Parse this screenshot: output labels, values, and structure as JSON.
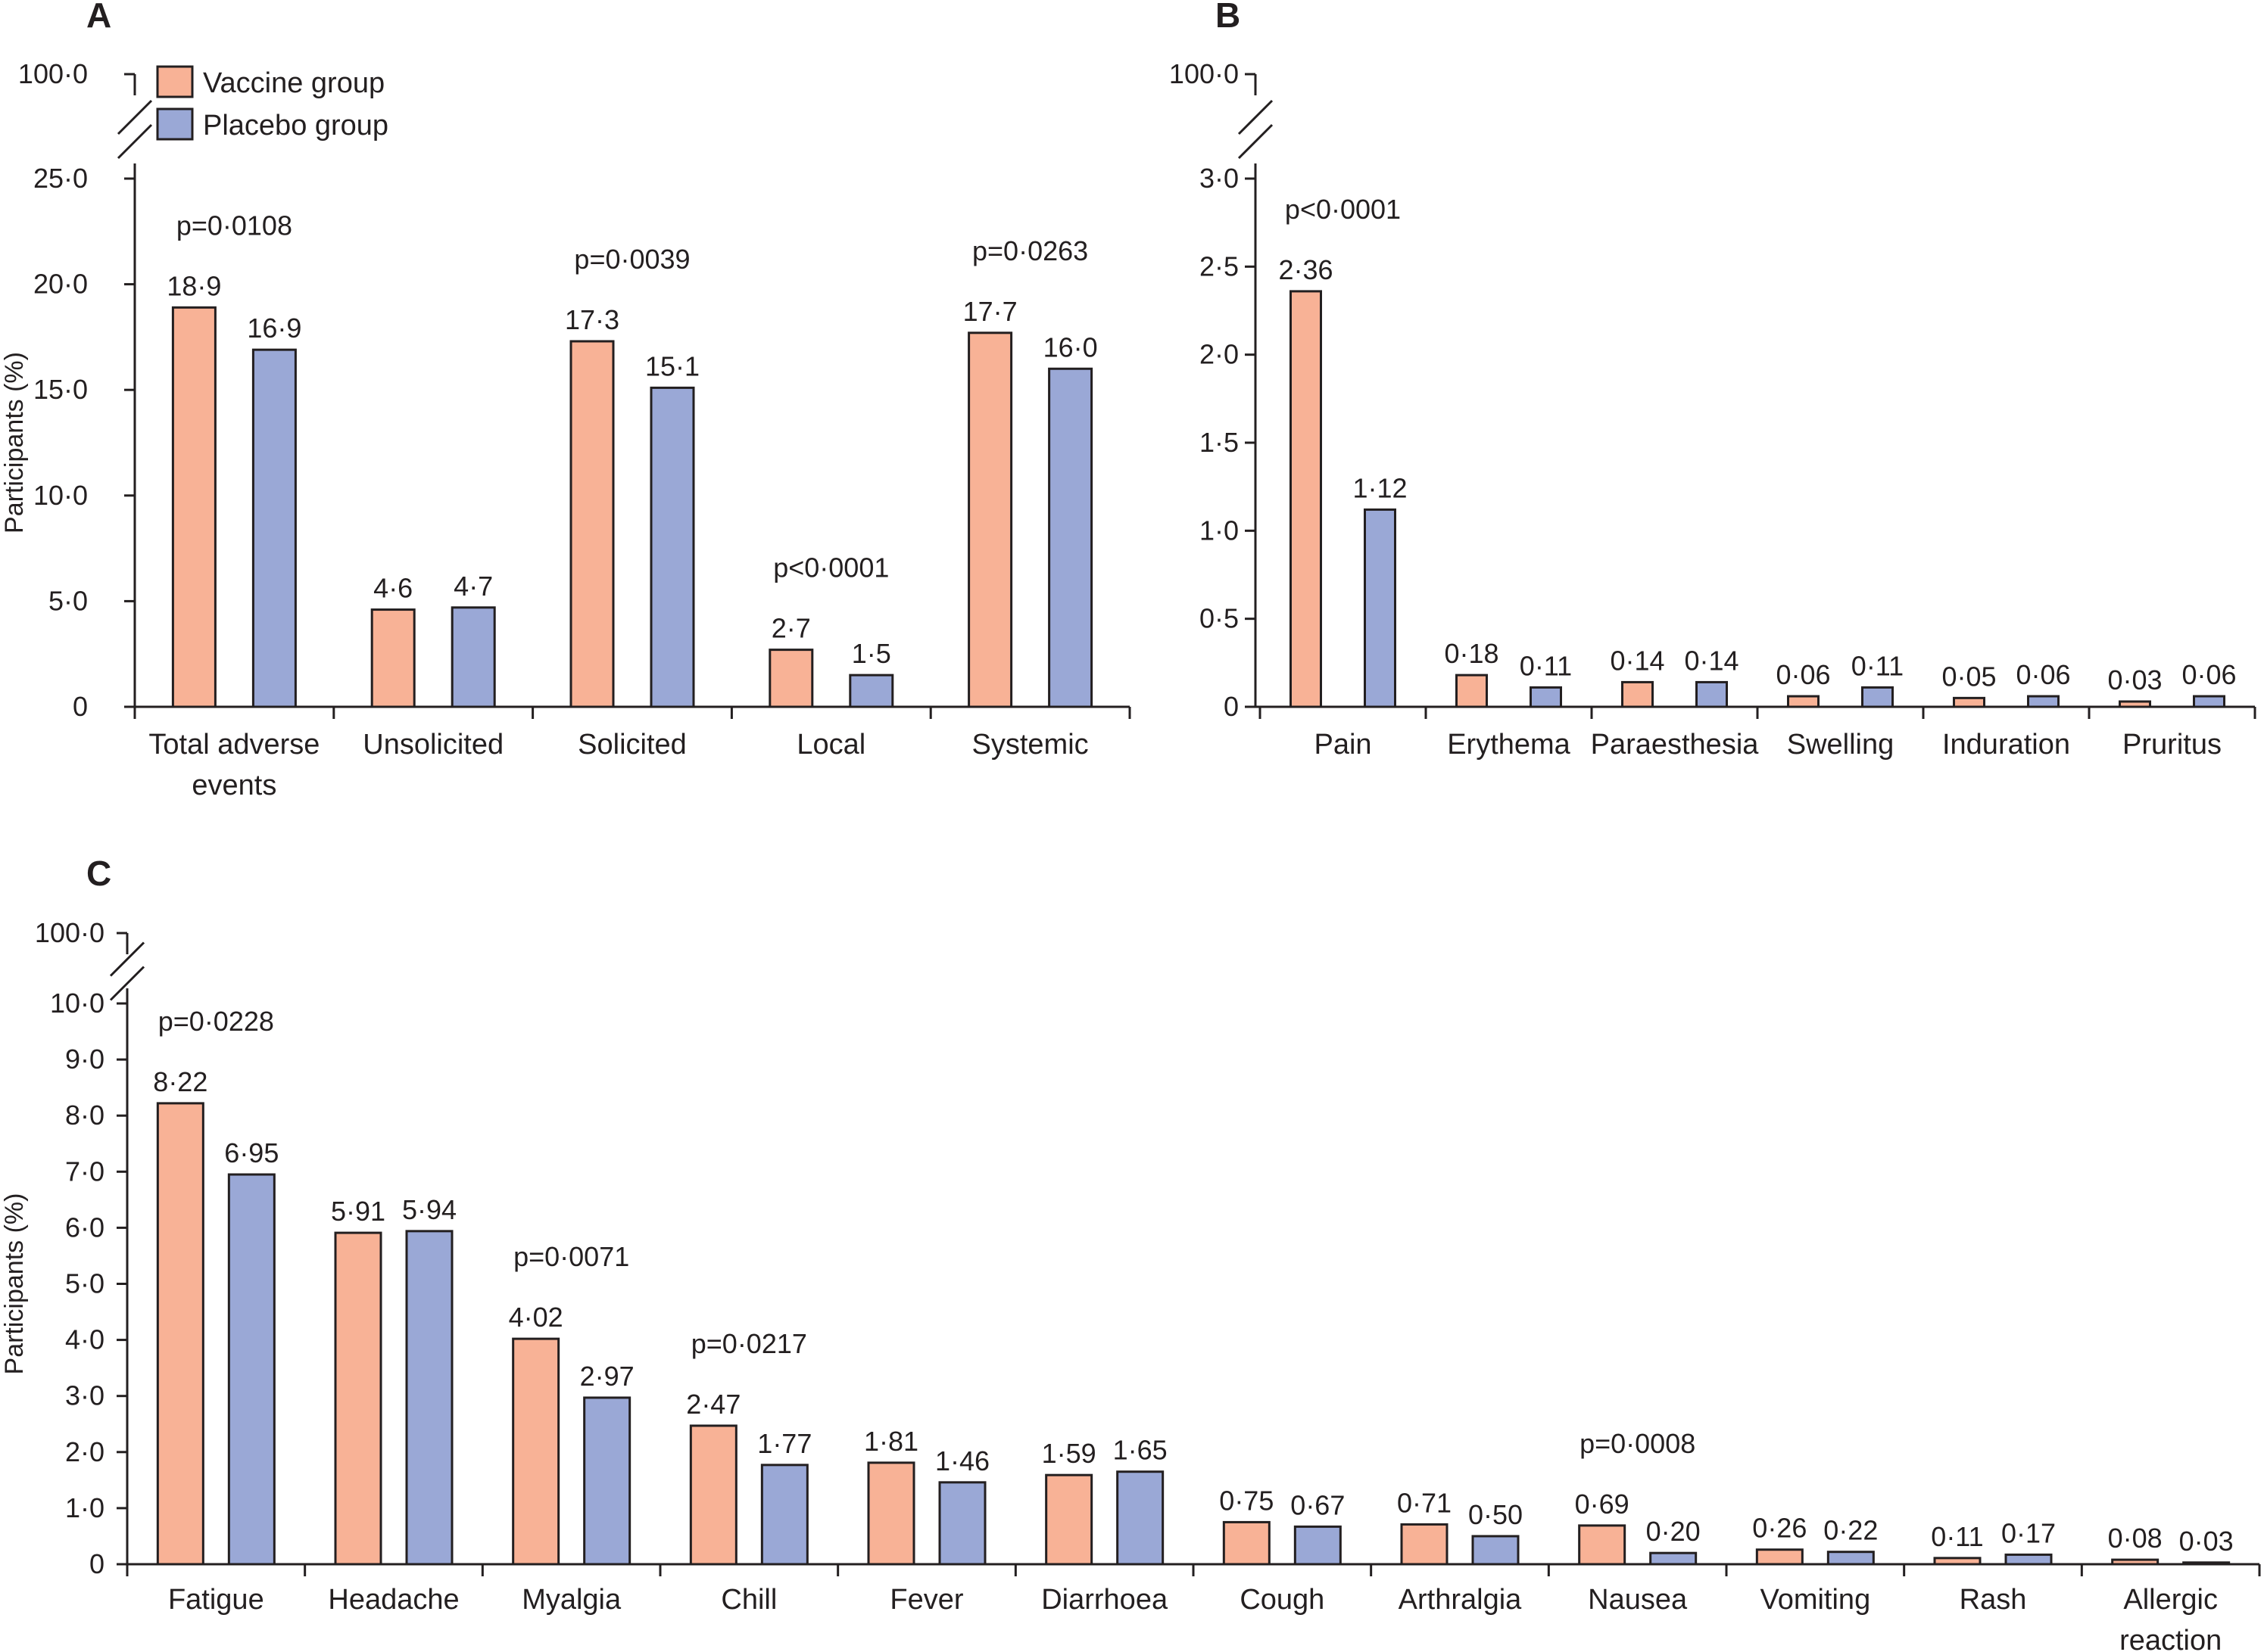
{
  "legend": {
    "vaccine_label": "Vaccine group",
    "placebo_label": "Placebo group"
  },
  "colors": {
    "vaccine": "#f8b296",
    "placebo": "#9aa8d6",
    "stroke": "#231f20"
  },
  "chart_data": [
    {
      "panel": "A",
      "type": "bar",
      "ylabel": "Participants (%)",
      "ylim": [
        0,
        25
      ],
      "y_break": true,
      "y_ticks": [
        "0",
        "5·0",
        "10·0",
        "15·0",
        "20·0",
        "25·0"
      ],
      "y_break_tick": "100·0",
      "categories": [
        "Total adverse events",
        "Unsolicited",
        "Solicited",
        "Local",
        "Systemic"
      ],
      "category_lines": [
        [
          "Total adverse",
          "events"
        ],
        [
          "Unsolicited"
        ],
        [
          "Solicited"
        ],
        [
          "Local"
        ],
        [
          "Systemic"
        ]
      ],
      "series": [
        {
          "name": "Vaccine group",
          "values": [
            18.9,
            4.6,
            17.3,
            2.7,
            17.7
          ],
          "labels": [
            "18·9",
            "4·6",
            "17·3",
            "2·7",
            "17·7"
          ]
        },
        {
          "name": "Placebo group",
          "values": [
            16.9,
            4.7,
            15.1,
            1.5,
            16.0
          ],
          "labels": [
            "16·9",
            "4·7",
            "15·1",
            "1·5",
            "16·0"
          ]
        }
      ],
      "annotations": [
        {
          "category": 0,
          "text": "p=0·0108"
        },
        {
          "category": 2,
          "text": "p=0·0039"
        },
        {
          "category": 3,
          "text": "p<0·0001"
        },
        {
          "category": 4,
          "text": "p=0·0263"
        }
      ],
      "grid": false
    },
    {
      "panel": "B",
      "type": "bar",
      "ylabel": "",
      "ylim": [
        0,
        3
      ],
      "y_break": true,
      "y_ticks": [
        "0",
        "0·5",
        "1·0",
        "1·5",
        "2·0",
        "2·5",
        "3·0"
      ],
      "y_break_tick": "100·0",
      "categories": [
        "Pain",
        "Erythema",
        "Paraesthesia",
        "Swelling",
        "Induration",
        "Pruritus"
      ],
      "category_lines": [
        [
          "Pain"
        ],
        [
          "Erythema"
        ],
        [
          "Paraesthesia"
        ],
        [
          "Swelling"
        ],
        [
          "Induration"
        ],
        [
          "Pruritus"
        ]
      ],
      "series": [
        {
          "name": "Vaccine group",
          "values": [
            2.36,
            0.18,
            0.14,
            0.06,
            0.05,
            0.03
          ],
          "labels": [
            "2·36",
            "0·18",
            "0·14",
            "0·06",
            "0·05",
            "0·03"
          ]
        },
        {
          "name": "Placebo group",
          "values": [
            1.12,
            0.11,
            0.14,
            0.11,
            0.06,
            0.06
          ],
          "labels": [
            "1·12",
            "0·11",
            "0·14",
            "0·11",
            "0·06",
            "0·06"
          ]
        }
      ],
      "annotations": [
        {
          "category": 0,
          "text": "p<0·0001"
        }
      ],
      "grid": false
    },
    {
      "panel": "C",
      "type": "bar",
      "ylabel": "Participants (%)",
      "ylim": [
        0,
        10
      ],
      "y_break": true,
      "y_ticks": [
        "0",
        "1·0",
        "2·0",
        "3·0",
        "4·0",
        "5·0",
        "6·0",
        "7·0",
        "8·0",
        "9·0",
        "10·0"
      ],
      "y_break_tick": "100·0",
      "categories": [
        "Fatigue",
        "Headache",
        "Myalgia",
        "Chill",
        "Fever",
        "Diarrhoea",
        "Cough",
        "Arthralgia",
        "Nausea",
        "Vomiting",
        "Rash",
        "Allergic reaction"
      ],
      "category_lines": [
        [
          "Fatigue"
        ],
        [
          "Headache"
        ],
        [
          "Myalgia"
        ],
        [
          "Chill"
        ],
        [
          "Fever"
        ],
        [
          "Diarrhoea"
        ],
        [
          "Cough"
        ],
        [
          "Arthralgia"
        ],
        [
          "Nausea"
        ],
        [
          "Vomiting"
        ],
        [
          "Rash"
        ],
        [
          "Allergic",
          "reaction"
        ]
      ],
      "series": [
        {
          "name": "Vaccine group",
          "values": [
            8.22,
            5.91,
            4.02,
            2.47,
            1.81,
            1.59,
            0.75,
            0.71,
            0.69,
            0.26,
            0.11,
            0.08
          ],
          "labels": [
            "8·22",
            "5·91",
            "4·02",
            "2·47",
            "1·81",
            "1·59",
            "0·75",
            "0·71",
            "0·69",
            "0·26",
            "0·11",
            "0·08"
          ]
        },
        {
          "name": "Placebo group",
          "values": [
            6.95,
            5.94,
            2.97,
            1.77,
            1.46,
            1.65,
            0.67,
            0.5,
            0.2,
            0.22,
            0.17,
            0.03
          ],
          "labels": [
            "6·95",
            "5·94",
            "2·97",
            "1·77",
            "1·46",
            "1·65",
            "0·67",
            "0·50",
            "0·20",
            "0·22",
            "0·17",
            "0·03"
          ]
        }
      ],
      "annotations": [
        {
          "category": 0,
          "text": "p=0·0228"
        },
        {
          "category": 2,
          "text": "p=0·0071"
        },
        {
          "category": 3,
          "text": "p=0·0217"
        },
        {
          "category": 8,
          "text": "p=0·0008"
        }
      ],
      "grid": false
    }
  ]
}
